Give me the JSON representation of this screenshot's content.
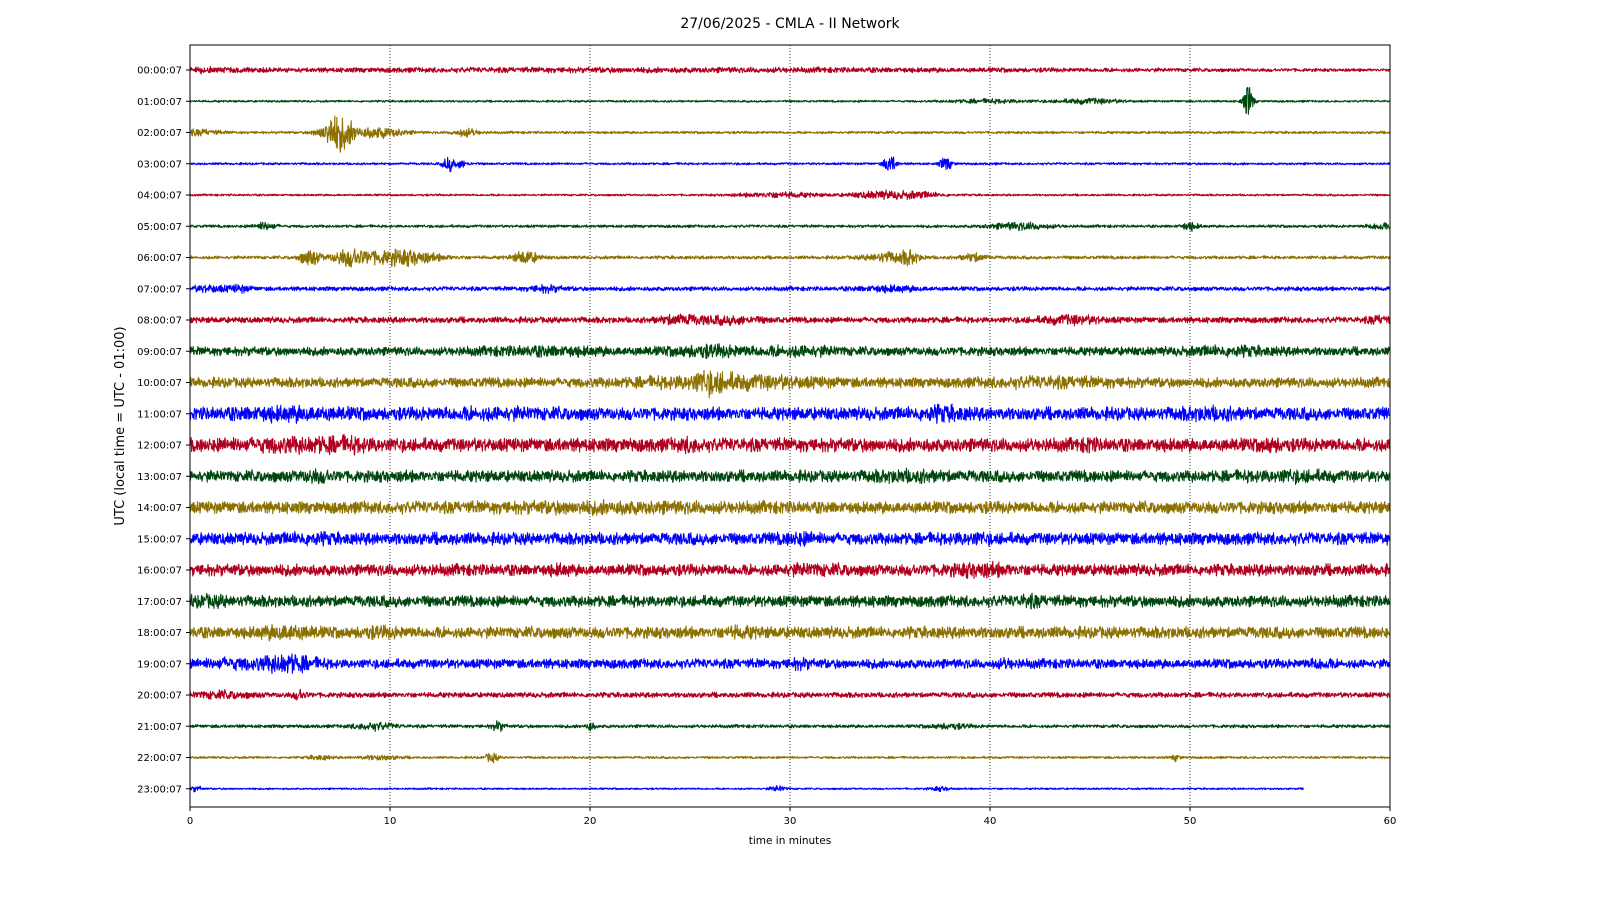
{
  "chart_data": {
    "type": "line",
    "title": "27/06/2025 - CMLA - II Network",
    "xlabel": "time in minutes",
    "ylabel": "UTC (local time = UTC - 01:00)",
    "xlim": [
      0,
      60
    ],
    "x_ticks": [
      0,
      10,
      20,
      30,
      40,
      50,
      60
    ],
    "grid": "vertical dotted lines at major x ticks",
    "line_colors": [
      "#b0001e",
      "#00470e",
      "#8c7000",
      "#0000ff"
    ],
    "trace_end_minute": [
      60,
      60,
      60,
      60,
      60,
      60,
      60,
      60,
      60,
      60,
      60,
      60,
      60,
      60,
      60,
      60,
      60,
      60,
      60,
      60,
      60,
      60,
      60,
      55.7
    ],
    "series": [
      {
        "label": "00:00:07",
        "color": "#b0001e",
        "base": 0.8,
        "events": [
          [
            0.5,
            2.5,
            1.3
          ],
          [
            24,
            30,
            1.5
          ]
        ]
      },
      {
        "label": "01:00:07",
        "color": "#00470e",
        "base": 0.8,
        "events": [
          [
            52.9,
            0.25,
            12
          ],
          [
            45,
            1.5,
            2
          ],
          [
            40,
            2,
            1.3
          ]
        ]
      },
      {
        "label": "02:00:07",
        "color": "#8c7000",
        "base": 1.0,
        "events": [
          [
            7.4,
            0.8,
            14
          ],
          [
            9.5,
            1.2,
            4
          ],
          [
            13.8,
            0.6,
            3
          ],
          [
            0.5,
            1,
            2
          ]
        ]
      },
      {
        "label": "03:00:07",
        "color": "#0000ff",
        "base": 0.9,
        "events": [
          [
            12.9,
            0.25,
            6
          ],
          [
            13.5,
            0.4,
            3
          ],
          [
            35,
            0.3,
            7
          ],
          [
            37.8,
            0.3,
            5
          ]
        ]
      },
      {
        "label": "04:00:07",
        "color": "#b0001e",
        "base": 0.8,
        "events": [
          [
            29.5,
            2,
            2
          ],
          [
            34.5,
            1.5,
            2.8
          ],
          [
            36.5,
            1.2,
            2
          ]
        ]
      },
      {
        "label": "05:00:07",
        "color": "#00470e",
        "base": 1.1,
        "events": [
          [
            3.8,
            0.5,
            3
          ],
          [
            41.5,
            1.5,
            2.6
          ],
          [
            50,
            0.4,
            3
          ],
          [
            59.5,
            0.6,
            2.5
          ]
        ]
      },
      {
        "label": "06:00:07",
        "color": "#8c7000",
        "base": 1.3,
        "events": [
          [
            6,
            0.5,
            6
          ],
          [
            8,
            0.9,
            6
          ],
          [
            10.5,
            1.8,
            6
          ],
          [
            16.8,
            0.6,
            5
          ],
          [
            35,
            1.2,
            3.5
          ],
          [
            36,
            0.4,
            4
          ],
          [
            39.2,
            0.6,
            3
          ]
        ]
      },
      {
        "label": "07:00:07",
        "color": "#0000ff",
        "base": 1.7,
        "events": [
          [
            1,
            1,
            2
          ],
          [
            2.5,
            0.5,
            2
          ],
          [
            17.8,
            0.8,
            2
          ],
          [
            35,
            1.5,
            1.8
          ]
        ]
      },
      {
        "label": "08:00:07",
        "color": "#b0001e",
        "base": 2.4,
        "events": [
          [
            24.5,
            1,
            3
          ],
          [
            27,
            1.5,
            2
          ],
          [
            44,
            1.5,
            2.5
          ],
          [
            59.5,
            0.6,
            2
          ]
        ]
      },
      {
        "label": "09:00:07",
        "color": "#00470e",
        "base": 3.5,
        "events": [
          [
            18,
            3,
            1.6
          ],
          [
            26,
            2,
            2.5
          ],
          [
            30.5,
            2,
            2
          ],
          [
            52,
            2,
            1.8
          ]
        ]
      },
      {
        "label": "10:00:07",
        "color": "#8c7000",
        "base": 4.0,
        "events": [
          [
            27,
            4,
            3.5
          ],
          [
            26,
            0.8,
            4
          ],
          [
            43,
            3,
            1.6
          ]
        ]
      },
      {
        "label": "11:00:07",
        "color": "#0000ff",
        "base": 5.2,
        "events": [
          [
            5,
            2.5,
            2.3
          ],
          [
            37.5,
            1.2,
            2.6
          ],
          [
            15,
            3,
            1.3
          ],
          [
            51,
            1.5,
            1.5
          ]
        ]
      },
      {
        "label": "12:00:07",
        "color": "#b0001e",
        "base": 5.5,
        "events": [
          [
            5,
            2.5,
            2.1
          ],
          [
            8,
            1.5,
            1.8
          ],
          [
            54,
            0.4,
            2.5
          ],
          [
            45,
            0.3,
            2
          ],
          [
            25,
            0.5,
            2
          ]
        ]
      },
      {
        "label": "13:00:07",
        "color": "#00470e",
        "base": 4.7,
        "events": [
          [
            6.3,
            0.7,
            1.9
          ],
          [
            36,
            2,
            1.4
          ],
          [
            55,
            2,
            1.4
          ]
        ]
      },
      {
        "label": "14:00:07",
        "color": "#8c7000",
        "base": 4.9,
        "events": [
          [
            21,
            5,
            1.3
          ]
        ]
      },
      {
        "label": "15:00:07",
        "color": "#0000ff",
        "base": 4.9,
        "events": [
          [
            6,
            1,
            1.6
          ],
          [
            30.5,
            0.8,
            1.6
          ],
          [
            39,
            1,
            1.4
          ]
        ]
      },
      {
        "label": "16:00:07",
        "color": "#b0001e",
        "base": 4.7,
        "events": [
          [
            39.5,
            1.5,
            2.2
          ],
          [
            31,
            1.5,
            1.5
          ],
          [
            18.5,
            0.5,
            1.6
          ]
        ]
      },
      {
        "label": "17:00:07",
        "color": "#00470e",
        "base": 4.6,
        "events": [
          [
            1,
            1,
            1.5
          ],
          [
            42,
            0.6,
            1.7
          ]
        ]
      },
      {
        "label": "18:00:07",
        "color": "#8c7000",
        "base": 4.7,
        "events": [
          [
            4.8,
            1.2,
            3.2
          ],
          [
            27.5,
            0.8,
            1.6
          ],
          [
            9.5,
            1,
            1.3
          ]
        ]
      },
      {
        "label": "19:00:07",
        "color": "#0000ff",
        "base": 3.8,
        "events": [
          [
            4.8,
            1.4,
            5
          ],
          [
            2,
            1.2,
            2
          ],
          [
            30.5,
            0.5,
            1.8
          ],
          [
            56.5,
            0.5,
            2.2
          ],
          [
            40.8,
            0.4,
            1.6
          ]
        ]
      },
      {
        "label": "20:00:07",
        "color": "#b0001e",
        "base": 2.1,
        "events": [
          [
            1.5,
            1.5,
            1.9
          ],
          [
            5.5,
            0.3,
            3
          ]
        ]
      },
      {
        "label": "21:00:07",
        "color": "#00470e",
        "base": 1.3,
        "events": [
          [
            9.2,
            1,
            2.5
          ],
          [
            15.4,
            0.3,
            3.5
          ],
          [
            20,
            0.2,
            3.5
          ],
          [
            38,
            1,
            1.6
          ]
        ]
      },
      {
        "label": "22:00:07",
        "color": "#8c7000",
        "base": 0.9,
        "events": [
          [
            15.1,
            0.3,
            4
          ],
          [
            9.5,
            1,
            1.6
          ],
          [
            6.5,
            0.6,
            1.6
          ],
          [
            49.3,
            0.2,
            2.5
          ]
        ]
      },
      {
        "label": "23:00:07",
        "color": "#0000ff",
        "base": 0.7,
        "events": [
          [
            29.4,
            0.4,
            2.2
          ],
          [
            0.3,
            0.3,
            2
          ],
          [
            37.5,
            0.5,
            1.5
          ]
        ]
      }
    ]
  }
}
